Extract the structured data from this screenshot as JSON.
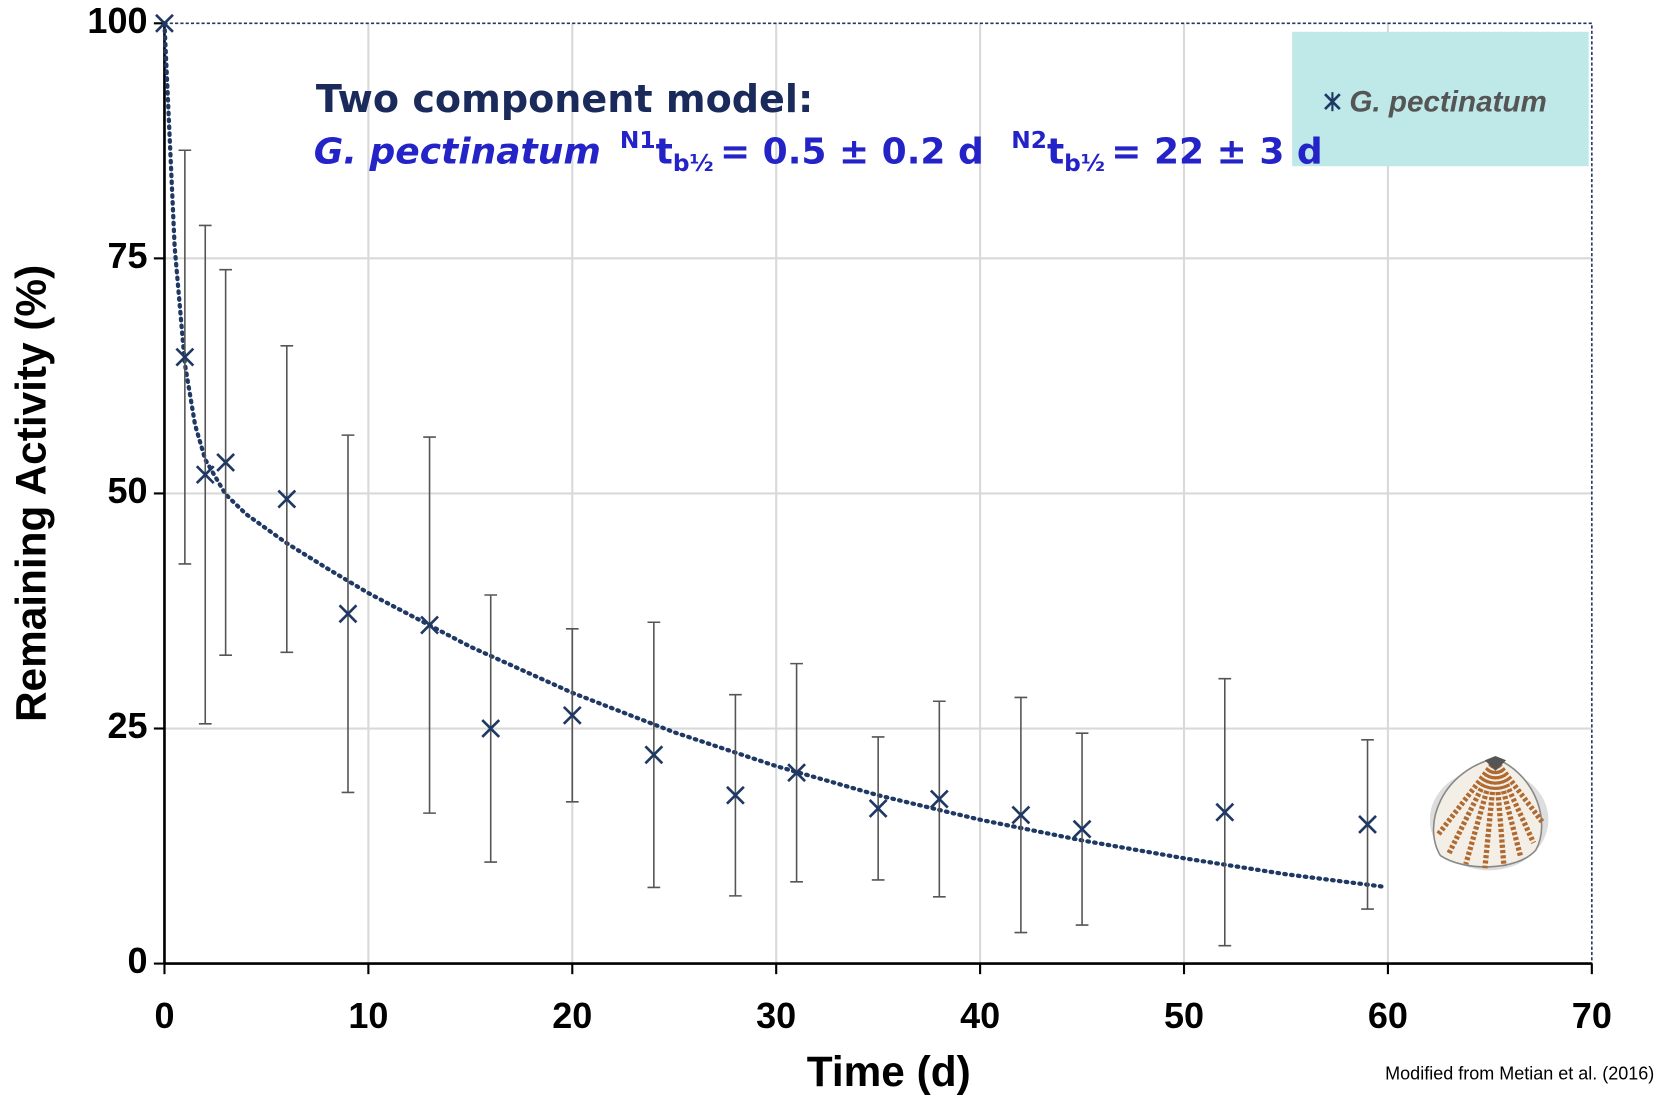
{
  "chart_data": {
    "type": "scatter",
    "annotation": {
      "line1": "Two component model:",
      "species": "G. pectinatum",
      "terms": [
        {
          "sup": "N1",
          "base": "t",
          "sub": "b½",
          "rest": "= 0.5 ± 0.2 d"
        },
        {
          "sup": "N2",
          "base": "t",
          "sub": "b½",
          "rest": "= 22 ± 3 d"
        }
      ]
    },
    "x_label": "Time (d)",
    "y_label": "Remaining Activity (%)",
    "source": "Modified from Metian et al. (2016)",
    "xlim": [
      0,
      70
    ],
    "xticks": [
      0,
      10,
      20,
      30,
      40,
      50,
      60,
      70
    ],
    "ylim": [
      0,
      100
    ],
    "yticks": [
      0,
      25,
      50,
      75,
      100
    ],
    "grid": true,
    "legend": "top-right",
    "series": [
      {
        "name": "G. pectinatum",
        "color": "#1f3864",
        "error_color": "#555555",
        "x": [
          0,
          1,
          2,
          3,
          6,
          9,
          13,
          16,
          20,
          24,
          28,
          31,
          35,
          38,
          42,
          45,
          52,
          59
        ],
        "values": [
          100,
          64.5,
          52,
          53.3,
          49.4,
          37.2,
          36,
          25,
          26.4,
          22.2,
          17.9,
          20.3,
          16.5,
          17.5,
          15.8,
          14.3,
          16.1,
          14.8
        ],
        "errors": [
          null,
          22,
          26.5,
          20.5,
          16.3,
          19,
          20,
          14.2,
          9.2,
          14.1,
          10.7,
          11.6,
          7.6,
          10.4,
          12.5,
          10.2,
          14.2,
          9
        ]
      }
    ],
    "fit": {
      "color": "#1f3864",
      "x": [
        0,
        0.5,
        1,
        1.5,
        2,
        3,
        4,
        6,
        8,
        10,
        15,
        20,
        25,
        30,
        35,
        40,
        45,
        50,
        55,
        59.7
      ],
      "values": [
        100,
        76.2,
        63.8,
        57.3,
        53.6,
        49.9,
        47.8,
        44.7,
        42,
        39.4,
        33.7,
        28.8,
        24.6,
        21,
        17.9,
        15.3,
        13.1,
        11.2,
        9.5,
        8.2
      ]
    }
  }
}
